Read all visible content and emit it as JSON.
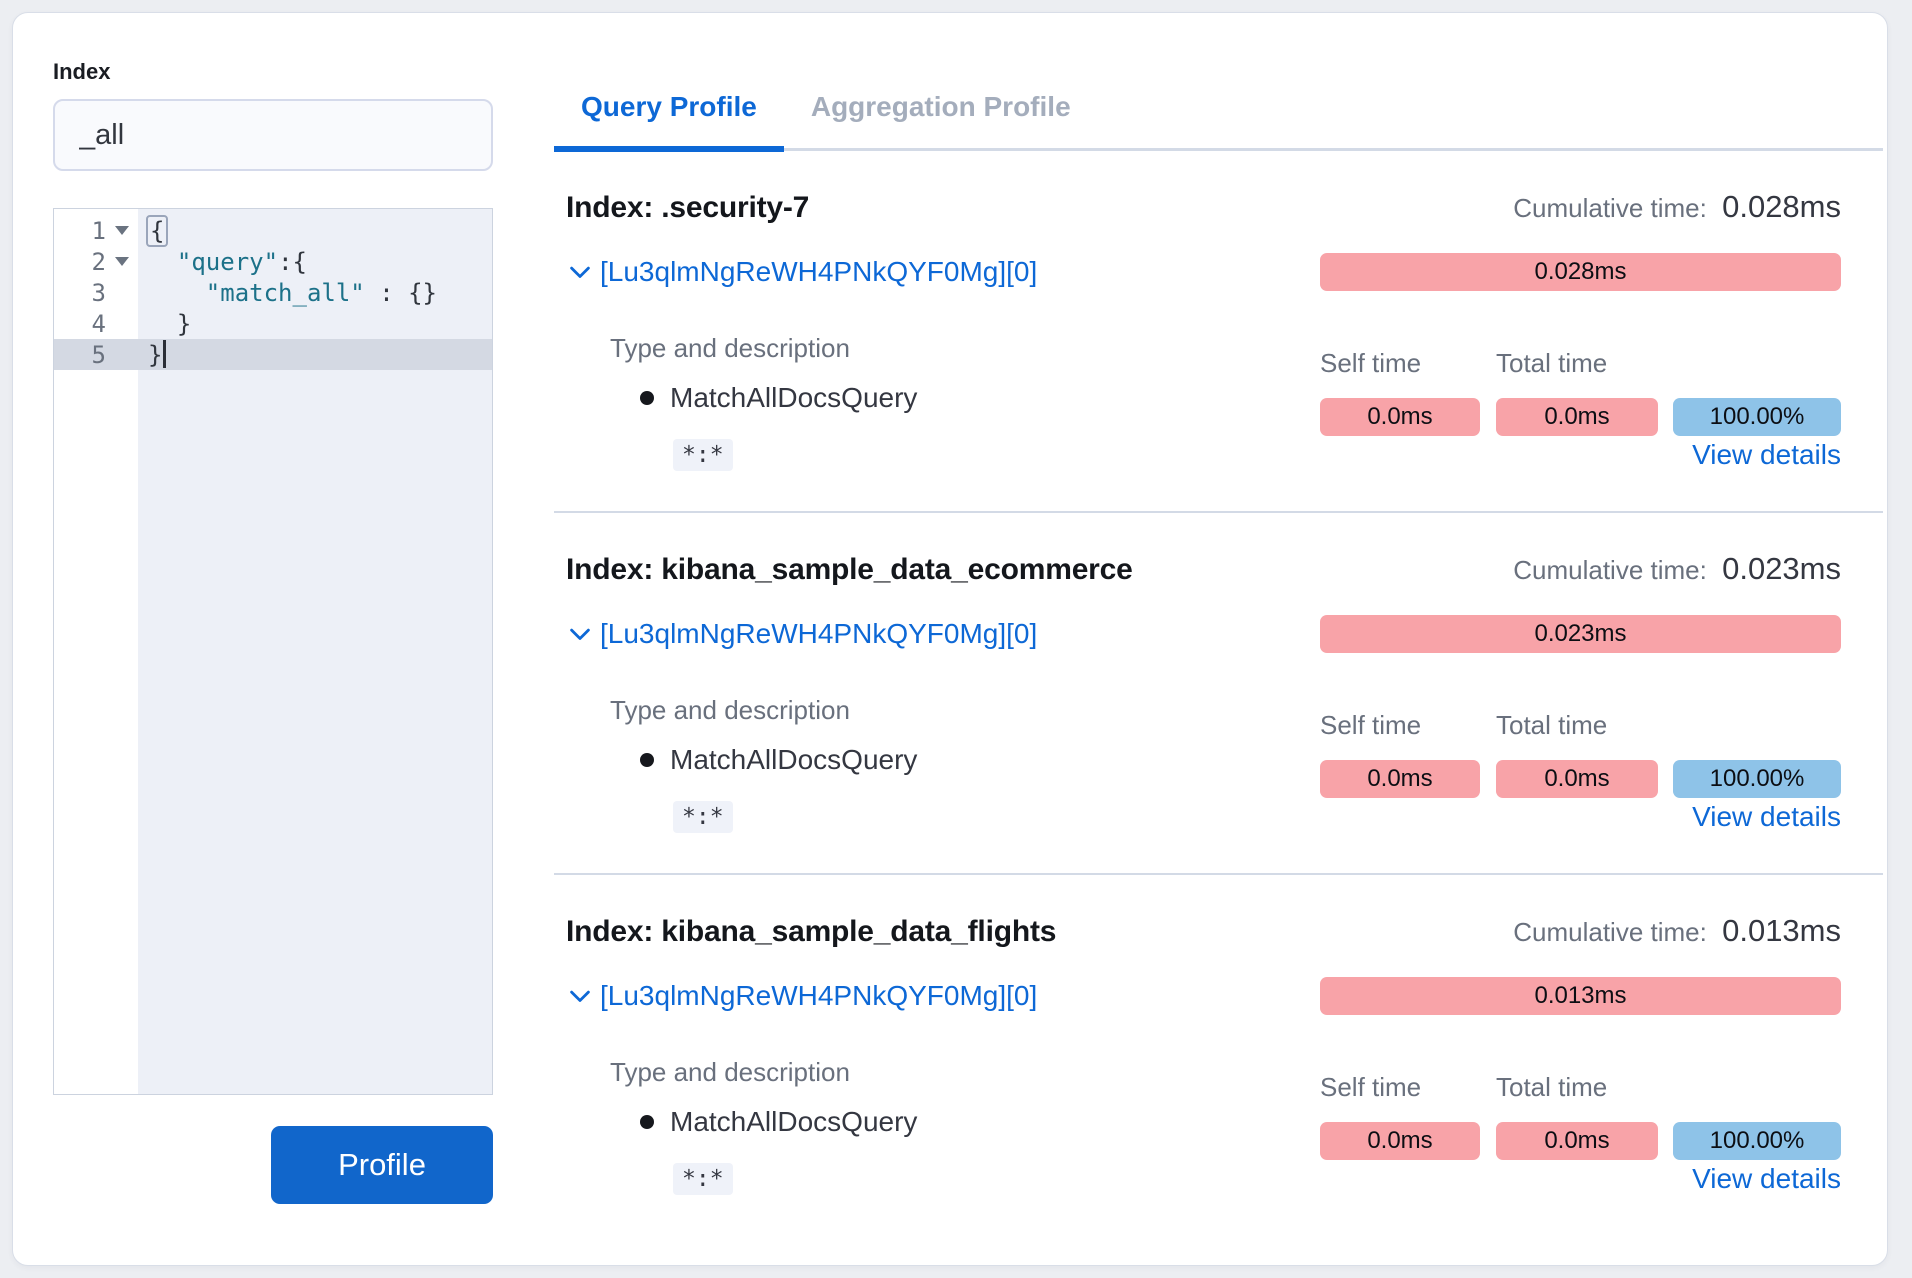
{
  "colors": {
    "primary-blue": "#1166cb",
    "link-blue": "#0d68d6",
    "pink-badge": "#f8a3a8",
    "blue-badge": "#8ec3e8",
    "divider": "#d3dae6",
    "muted-text": "#69707d",
    "inactive-tab": "#a4adbc",
    "dark-text": "#343741",
    "code-string": "#1c7189",
    "editor-active-line": "#d4d9e3"
  },
  "left_panel": {
    "index_label": "Index",
    "index_value": "_all",
    "profile_button": "Profile",
    "editor_lines": [
      {
        "num": "1",
        "fold": true,
        "active": false,
        "cursor": false,
        "segments": [
          {
            "text": "{",
            "type": "punct",
            "bracket_box": true
          }
        ]
      },
      {
        "num": "2",
        "fold": true,
        "active": false,
        "cursor": false,
        "segments": [
          {
            "text": "  ",
            "type": "punct"
          },
          {
            "text": "\"query\"",
            "type": "string"
          },
          {
            "text": ":{",
            "type": "punct"
          }
        ]
      },
      {
        "num": "3",
        "fold": false,
        "active": false,
        "cursor": false,
        "segments": [
          {
            "text": "    ",
            "type": "punct"
          },
          {
            "text": "\"match_all\"",
            "type": "string"
          },
          {
            "text": " : {}",
            "type": "punct"
          }
        ]
      },
      {
        "num": "4",
        "fold": false,
        "active": false,
        "cursor": false,
        "segments": [
          {
            "text": "  }",
            "type": "punct"
          }
        ]
      },
      {
        "num": "5",
        "fold": false,
        "active": true,
        "cursor": true,
        "segments": [
          {
            "text": "}",
            "type": "punct"
          }
        ]
      }
    ]
  },
  "tabs": {
    "query": "Query Profile",
    "aggregation": "Aggregation Profile"
  },
  "labels": {
    "cumulative_time": "Cumulative time:",
    "type_and_description": "Type and description",
    "self_time": "Self time",
    "total_time": "Total time",
    "view_details": "View details"
  },
  "sections": [
    {
      "index_title": "Index: .security-7",
      "cumulative_value": "0.028ms",
      "shard": "[Lu3qlmNgReWH4PNkQYF0Mg][0]",
      "shard_time": "0.028ms",
      "query_type": "MatchAllDocsQuery",
      "self_time": "0.0ms",
      "total_time": "0.0ms",
      "percent": "100.00%",
      "lucene_query": "*:*"
    },
    {
      "index_title": "Index: kibana_sample_data_ecommerce",
      "cumulative_value": "0.023ms",
      "shard": "[Lu3qlmNgReWH4PNkQYF0Mg][0]",
      "shard_time": "0.023ms",
      "query_type": "MatchAllDocsQuery",
      "self_time": "0.0ms",
      "total_time": "0.0ms",
      "percent": "100.00%",
      "lucene_query": "*:*"
    },
    {
      "index_title": "Index: kibana_sample_data_flights",
      "cumulative_value": "0.013ms",
      "shard": "[Lu3qlmNgReWH4PNkQYF0Mg][0]",
      "shard_time": "0.013ms",
      "query_type": "MatchAllDocsQuery",
      "self_time": "0.0ms",
      "total_time": "0.0ms",
      "percent": "100.00%",
      "lucene_query": "*:*"
    }
  ]
}
